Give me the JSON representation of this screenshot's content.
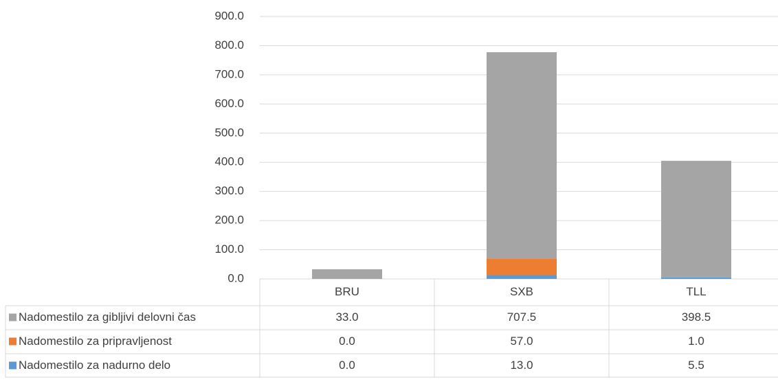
{
  "chart_data": {
    "type": "bar",
    "categories": [
      "BRU",
      "SXB",
      "TLL"
    ],
    "series": [
      {
        "name": "Nadomestilo za nadurno delo",
        "color": "#5b9bd5",
        "values": [
          0,
          13,
          5.5
        ],
        "value_labels": [
          "0.0",
          "13.0",
          "5.5"
        ]
      },
      {
        "name": "Nadomestilo za pripravljenost",
        "color": "#ed7d31",
        "values": [
          0,
          57,
          1
        ],
        "value_labels": [
          "0.0",
          "57.0",
          "1.0"
        ]
      },
      {
        "name": "Nadomestilo za gibljivi delovni čas",
        "color": "#a5a5a5",
        "values": [
          33,
          707.5,
          398.5
        ],
        "value_labels": [
          "33.0",
          "707.5",
          "398.5"
        ]
      }
    ],
    "ylim": [
      0,
      900
    ],
    "yticks": [
      {
        "value": 0,
        "label": "0.0"
      },
      {
        "value": 100,
        "label": "100.0"
      },
      {
        "value": 200,
        "label": "200.0"
      },
      {
        "value": 300,
        "label": "300.0"
      },
      {
        "value": 400,
        "label": "400.0"
      },
      {
        "value": 500,
        "label": "500.0"
      },
      {
        "value": 600,
        "label": "600.0"
      },
      {
        "value": 700,
        "label": "700.0"
      },
      {
        "value": 800,
        "label": "800.0"
      },
      {
        "value": 900,
        "label": "900.0"
      }
    ],
    "grid": true,
    "stacked": true,
    "data_table": true
  }
}
